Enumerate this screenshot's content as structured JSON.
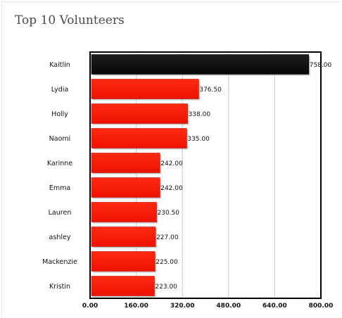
{
  "title": "Top 10 Volunteers",
  "chart_data": {
    "type": "bar",
    "orientation": "horizontal",
    "title": "Top 10 Volunteers",
    "categories": [
      "Kaitlin",
      "Lydia",
      "Holly",
      "Naomi",
      "Karinne",
      "Emma",
      "Lauren",
      "ashley",
      "Mackenzie",
      "Kristin"
    ],
    "values": [
      758.0,
      376.5,
      338.0,
      335.0,
      242.0,
      242.0,
      230.5,
      227.0,
      225.0,
      223.0
    ],
    "value_labels": [
      "758.00",
      "376.50",
      "338.00",
      "335.00",
      "242.00",
      "242.00",
      "230.50",
      "227.00",
      "225.00",
      "223.00"
    ],
    "xlim": [
      0,
      800
    ],
    "xticks": [
      0,
      160,
      320,
      480,
      640,
      800
    ],
    "xtick_labels": [
      "0.00",
      "160.00",
      "320.00",
      "480.00",
      "640.00",
      "800.00"
    ],
    "grid": true,
    "colors": {
      "highlight": "#111111",
      "bar": "#ff1500",
      "grid": "#c8c8c8",
      "axis": "#000000"
    }
  }
}
